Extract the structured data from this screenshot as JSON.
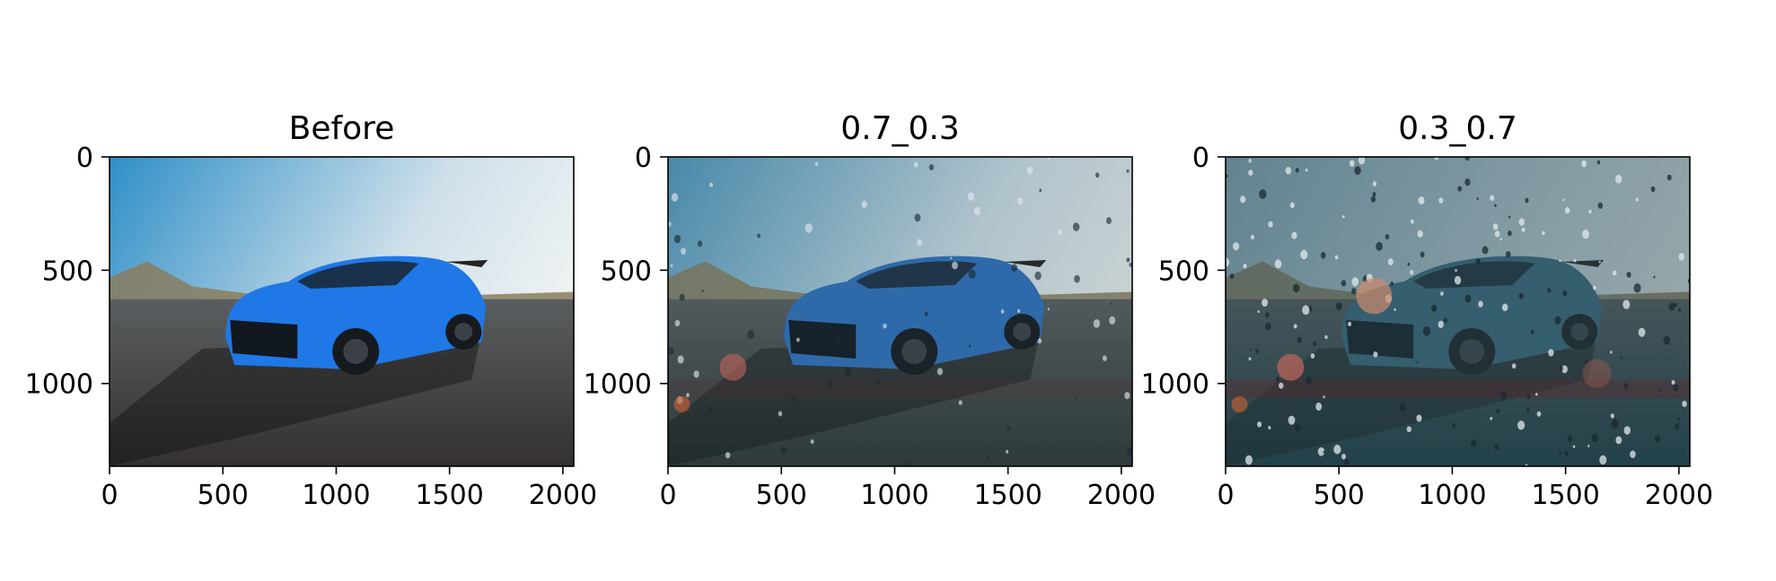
{
  "chart_data": [
    {
      "type": "image",
      "title": "Before",
      "xlim": [
        0,
        2048
      ],
      "ylim": [
        1365,
        0
      ],
      "xticks": [
        0,
        500,
        1000,
        1500,
        2000
      ],
      "yticks": [
        0,
        500,
        1000
      ],
      "xtick_labels": [
        "0",
        "500",
        "1000",
        "1500",
        "2000"
      ],
      "ytick_labels": [
        "0",
        "500",
        "1000"
      ],
      "rain_overlay_weight": 0,
      "colors": {
        "sky": "#2f8fc8",
        "car": "#1f78e6",
        "ground": "#34312f"
      }
    },
    {
      "type": "image",
      "title": "0.7_0.3",
      "xlim": [
        0,
        2048
      ],
      "ylim": [
        1365,
        0
      ],
      "xticks": [
        0,
        500,
        1000,
        1500,
        2000
      ],
      "yticks": [
        0,
        500,
        1000
      ],
      "xtick_labels": [
        "0",
        "500",
        "1000",
        "1500",
        "2000"
      ],
      "ytick_labels": [
        "0",
        "500",
        "1000"
      ],
      "rain_overlay_weight": 0.3,
      "colors": {
        "sky": "#4f98bf",
        "car": "#2f72c0",
        "ground": "#2e3535"
      }
    },
    {
      "type": "image",
      "title": "0.3_0.7",
      "xlim": [
        0,
        2048
      ],
      "ylim": [
        1365,
        0
      ],
      "xticks": [
        0,
        500,
        1000,
        1500,
        2000
      ],
      "yticks": [
        0,
        500,
        1000
      ],
      "xtick_labels": [
        "0",
        "500",
        "1000",
        "1500",
        "2000"
      ],
      "ytick_labels": [
        "0",
        "500",
        "1000"
      ],
      "rain_overlay_weight": 0.7,
      "colors": {
        "sky": "#8fb3c4",
        "car": "#3d6f86",
        "ground": "#1c3a44"
      }
    }
  ]
}
